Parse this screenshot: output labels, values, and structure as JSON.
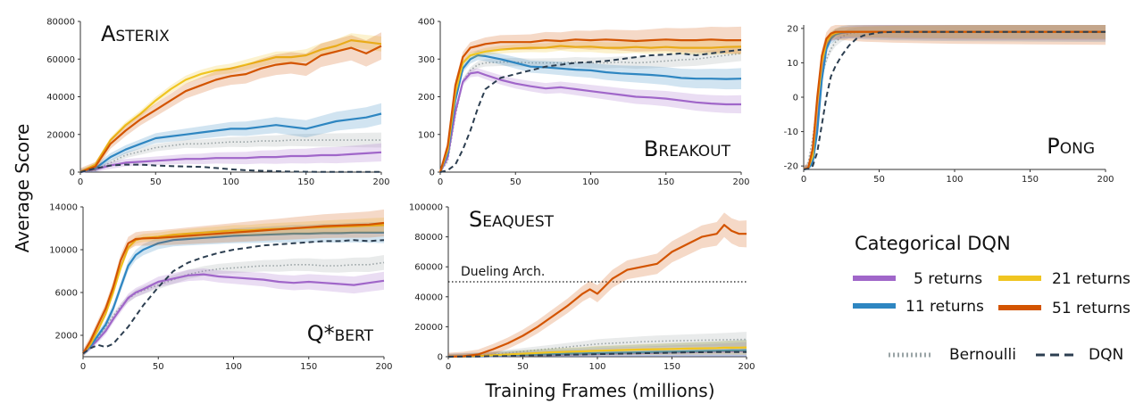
{
  "figure": {
    "ylabel": "Average Score",
    "xlabel": "Training Frames (millions)"
  },
  "legend": {
    "title": "Categorical DQN",
    "items": [
      {
        "label": "5 returns",
        "color": "#a066c9",
        "style": "solid"
      },
      {
        "label": "21 returns",
        "color": "#f0c520",
        "style": "solid"
      },
      {
        "label": "11 returns",
        "color": "#2e86c1",
        "style": "solid"
      },
      {
        "label": "51 returns",
        "color": "#d35400",
        "style": "solid"
      },
      {
        "label": "Bernoulli",
        "color": "#9aa4a6",
        "style": "dotted"
      },
      {
        "label": "DQN",
        "color": "#2c3e50",
        "style": "dashed"
      }
    ]
  },
  "chart_data": [
    {
      "type": "line",
      "title_first": "A",
      "title_rest": "STERIX",
      "title_pos": "top-left",
      "xlim": [
        0,
        200
      ],
      "ylim": [
        0,
        80000
      ],
      "xticks": [
        0,
        50,
        100,
        150,
        200
      ],
      "yticks": [
        0,
        20000,
        40000,
        60000,
        80000
      ],
      "x": [
        0,
        10,
        20,
        30,
        40,
        50,
        60,
        70,
        80,
        90,
        100,
        110,
        120,
        130,
        140,
        150,
        160,
        170,
        180,
        190,
        200
      ],
      "series": [
        {
          "key": "c51",
          "color": "#d35400",
          "values": [
            0,
            3000,
            15000,
            22000,
            28000,
            33000,
            38000,
            43000,
            46000,
            49000,
            51000,
            52000,
            55000,
            57000,
            58000,
            57000,
            62000,
            64000,
            66000,
            63000,
            67000
          ]
        },
        {
          "key": "c21",
          "color": "#f0c520",
          "values": [
            0,
            4000,
            17000,
            25000,
            31000,
            38000,
            44000,
            49000,
            52000,
            54000,
            55000,
            57000,
            59000,
            61000,
            61000,
            62000,
            65000,
            67000,
            70000,
            69000,
            68000
          ]
        },
        {
          "key": "c11",
          "color": "#2e86c1",
          "values": [
            0,
            2000,
            8000,
            12000,
            15000,
            18000,
            19000,
            20000,
            21000,
            22000,
            23000,
            23000,
            24000,
            25000,
            24000,
            23000,
            25000,
            27000,
            28000,
            29000,
            31000
          ]
        },
        {
          "key": "c5",
          "color": "#a066c9",
          "values": [
            0,
            1500,
            3500,
            5000,
            5500,
            6000,
            6500,
            7000,
            7000,
            7500,
            7500,
            7500,
            8000,
            8000,
            8500,
            8500,
            9000,
            9000,
            9500,
            10000,
            10500
          ]
        },
        {
          "key": "bern",
          "color": "#9aa4a6",
          "values": [
            0,
            1000,
            5000,
            9000,
            11000,
            13000,
            14000,
            15000,
            15000,
            15500,
            16000,
            16000,
            16500,
            16500,
            17000,
            17000,
            17000,
            17000,
            17000,
            17000,
            17000
          ]
        },
        {
          "key": "dqn",
          "color": "#2c3e50",
          "values": [
            0,
            2000,
            3500,
            4000,
            4000,
            3500,
            3200,
            3000,
            2800,
            2200,
            1500,
            1000,
            700,
            500,
            300,
            200,
            100,
            100,
            100,
            100,
            100
          ]
        }
      ]
    },
    {
      "type": "line",
      "title_first": "B",
      "title_rest": "REAKOUT",
      "title_pos": "bottom-right",
      "xlim": [
        0,
        200
      ],
      "ylim": [
        0,
        400
      ],
      "xticks": [
        0,
        50,
        100,
        150,
        200
      ],
      "yticks": [
        0,
        100,
        200,
        300,
        400
      ],
      "x": [
        0,
        5,
        10,
        15,
        20,
        25,
        30,
        40,
        50,
        60,
        70,
        80,
        90,
        100,
        110,
        120,
        130,
        140,
        150,
        160,
        170,
        180,
        190,
        200
      ],
      "series": [
        {
          "key": "c51",
          "color": "#d35400",
          "values": [
            0,
            70,
            230,
            305,
            330,
            335,
            340,
            345,
            345,
            345,
            350,
            348,
            352,
            350,
            352,
            350,
            348,
            350,
            352,
            350,
            350,
            352,
            350,
            350
          ]
        },
        {
          "key": "c21",
          "color": "#f0c520",
          "values": [
            0,
            60,
            210,
            290,
            310,
            315,
            320,
            325,
            328,
            330,
            330,
            335,
            332,
            333,
            330,
            330,
            332,
            330,
            332,
            330,
            330,
            330,
            332,
            333
          ]
        },
        {
          "key": "c11",
          "color": "#2e86c1",
          "values": [
            0,
            50,
            190,
            275,
            300,
            310,
            308,
            300,
            290,
            280,
            278,
            275,
            272,
            270,
            265,
            262,
            260,
            258,
            255,
            250,
            248,
            248,
            247,
            248
          ]
        },
        {
          "key": "c5",
          "color": "#a066c9",
          "values": [
            0,
            40,
            160,
            240,
            262,
            265,
            258,
            245,
            235,
            228,
            222,
            225,
            220,
            215,
            210,
            205,
            200,
            198,
            195,
            190,
            185,
            182,
            180,
            180
          ]
        },
        {
          "key": "bern",
          "color": "#9aa4a6",
          "values": [
            0,
            30,
            150,
            240,
            270,
            285,
            290,
            292,
            292,
            290,
            290,
            290,
            292,
            290,
            290,
            292,
            290,
            292,
            295,
            298,
            300,
            305,
            310,
            315
          ]
        },
        {
          "key": "dqn",
          "color": "#2c3e50",
          "values": [
            0,
            5,
            20,
            60,
            110,
            170,
            220,
            250,
            260,
            270,
            280,
            285,
            290,
            292,
            295,
            300,
            305,
            310,
            312,
            315,
            310,
            315,
            320,
            325
          ]
        }
      ]
    },
    {
      "type": "line",
      "title_first": "P",
      "title_rest": "ONG",
      "title_pos": "bottom-right",
      "xlim": [
        0,
        200
      ],
      "ylim": [
        -21,
        21
      ],
      "xticks": [
        0,
        50,
        100,
        150,
        200
      ],
      "yticks": [
        -20,
        -10,
        0,
        10,
        20
      ],
      "x": [
        0,
        3,
        6,
        9,
        12,
        15,
        18,
        21,
        25,
        30,
        35,
        40,
        50,
        60,
        80,
        100,
        150,
        200
      ],
      "series": [
        {
          "key": "c51",
          "color": "#d35400",
          "values": [
            -21,
            -20.5,
            -15,
            0,
            12,
            17,
            18.5,
            19,
            19,
            19,
            19,
            19,
            19,
            19,
            19,
            19,
            19,
            19
          ]
        },
        {
          "key": "c21",
          "color": "#f0c520",
          "values": [
            -21,
            -20.5,
            -17,
            -2,
            10,
            16,
            18,
            18.7,
            19,
            19,
            19,
            19,
            19,
            19,
            19,
            19,
            19,
            19
          ]
        },
        {
          "key": "c11",
          "color": "#2e86c1",
          "values": [
            -21,
            -20.7,
            -19,
            -10,
            5,
            14,
            17,
            18.2,
            18.8,
            19,
            19,
            19,
            19,
            19,
            19,
            19,
            19,
            19
          ]
        },
        {
          "key": "c5",
          "color": "#a066c9",
          "values": [
            -21,
            -20.5,
            -18,
            -6,
            8,
            15,
            17.5,
            18.3,
            18.7,
            18.9,
            19,
            19,
            19,
            19,
            19,
            19,
            19,
            19
          ]
        },
        {
          "key": "bern",
          "color": "#9aa4a6",
          "values": [
            -21,
            -19,
            -12,
            -2,
            6,
            11,
            14,
            16,
            17.5,
            18.5,
            18.8,
            19,
            19,
            19,
            19,
            19,
            19,
            19
          ]
        },
        {
          "key": "dqn",
          "color": "#2c3e50",
          "values": [
            -21,
            -20.8,
            -20,
            -16,
            -8,
            0,
            6,
            9,
            12,
            15,
            17,
            18,
            18.8,
            19,
            19,
            19,
            19,
            19
          ]
        }
      ]
    },
    {
      "type": "line",
      "title_first": "Q*",
      "title_rest": "BERT",
      "title_pos": "bottom-right",
      "xlim": [
        0,
        200
      ],
      "ylim": [
        0,
        14000
      ],
      "xticks": [
        0,
        50,
        100,
        150,
        200
      ],
      "yticks": [
        2000,
        6000,
        10000,
        14000
      ],
      "x": [
        0,
        5,
        10,
        15,
        20,
        25,
        30,
        35,
        40,
        50,
        60,
        70,
        80,
        90,
        100,
        110,
        120,
        130,
        140,
        150,
        160,
        170,
        180,
        190,
        200
      ],
      "series": [
        {
          "key": "c51",
          "color": "#d35400",
          "values": [
            300,
            1500,
            3000,
            4500,
            6500,
            9000,
            10600,
            11000,
            11050,
            11100,
            11200,
            11300,
            11400,
            11500,
            11600,
            11700,
            11800,
            11900,
            12000,
            12100,
            12200,
            12250,
            12300,
            12350,
            12500
          ]
        },
        {
          "key": "c21",
          "color": "#f0c520",
          "values": [
            300,
            1200,
            2500,
            4000,
            6000,
            8300,
            10200,
            10900,
            11100,
            11200,
            11400,
            11500,
            11600,
            11700,
            11800,
            11800,
            11900,
            11950,
            12000,
            12050,
            12100,
            12150,
            12200,
            12250,
            12300
          ]
        },
        {
          "key": "c11",
          "color": "#2e86c1",
          "values": [
            300,
            1000,
            2000,
            3000,
            4500,
            6500,
            8500,
            9500,
            10000,
            10600,
            10900,
            11000,
            11100,
            11200,
            11300,
            11350,
            11400,
            11450,
            11500,
            11500,
            11550,
            11550,
            11600,
            11600,
            11600
          ]
        },
        {
          "key": "c5",
          "color": "#a066c9",
          "values": [
            300,
            900,
            1600,
            2400,
            3500,
            4500,
            5500,
            6000,
            6300,
            7000,
            7300,
            7600,
            7700,
            7500,
            7400,
            7300,
            7200,
            7000,
            6900,
            7000,
            6900,
            6800,
            6700,
            6900,
            7100
          ]
        },
        {
          "key": "bern",
          "color": "#9aa4a6",
          "values": [
            300,
            900,
            1800,
            2800,
            3800,
            4700,
            5400,
            5900,
            6200,
            6700,
            7200,
            7700,
            8000,
            8200,
            8300,
            8400,
            8500,
            8500,
            8600,
            8600,
            8500,
            8500,
            8600,
            8600,
            8800
          ]
        },
        {
          "key": "dqn",
          "color": "#2c3e50",
          "values": [
            300,
            800,
            1100,
            900,
            1200,
            2000,
            2800,
            3800,
            4800,
            6500,
            8000,
            8800,
            9300,
            9700,
            10000,
            10200,
            10400,
            10500,
            10600,
            10700,
            10800,
            10800,
            10900,
            10800,
            10900
          ]
        }
      ]
    },
    {
      "type": "line",
      "title_first": "S",
      "title_rest": "EAQUEST",
      "title_pos": "top-left",
      "xlim": [
        0,
        200
      ],
      "ylim": [
        0,
        100000
      ],
      "xticks": [
        0,
        50,
        100,
        150,
        200
      ],
      "yticks": [
        0,
        20000,
        40000,
        60000,
        80000,
        100000
      ],
      "annotation": {
        "label": "Dueling Arch.",
        "y": 50000
      },
      "x": [
        0,
        10,
        20,
        30,
        40,
        50,
        60,
        70,
        80,
        90,
        95,
        100,
        110,
        120,
        130,
        140,
        150,
        160,
        170,
        180,
        185,
        190,
        195,
        200
      ],
      "series": [
        {
          "key": "c51",
          "color": "#d35400",
          "values": [
            0,
            300,
            1500,
            5000,
            9000,
            14000,
            20000,
            27000,
            34000,
            42000,
            45000,
            42000,
            52000,
            58000,
            60000,
            62000,
            70000,
            75000,
            80000,
            82000,
            88000,
            84000,
            82000,
            82000
          ]
        },
        {
          "key": "c21",
          "color": "#f0c520",
          "values": [
            0,
            200,
            500,
            1000,
            1500,
            2000,
            2500,
            3000,
            3300,
            3600,
            3800,
            4000,
            4200,
            4500,
            4800,
            5000,
            5200,
            5400,
            5600,
            5800,
            6000,
            6000,
            6100,
            6200
          ]
        },
        {
          "key": "c11",
          "color": "#2e86c1",
          "values": [
            0,
            100,
            300,
            600,
            900,
            1200,
            1500,
            1800,
            2000,
            2200,
            2300,
            2400,
            2600,
            2800,
            3000,
            3200,
            3400,
            3600,
            3800,
            4000,
            4100,
            4200,
            4300,
            4400
          ]
        },
        {
          "key": "c5",
          "color": "#a066c9",
          "values": [
            0,
            100,
            200,
            400,
            600,
            800,
            1000,
            1200,
            1400,
            1600,
            1700,
            1800,
            2000,
            2200,
            2400,
            2600,
            2800,
            3000,
            3200,
            3400,
            3500,
            3600,
            3700,
            3800
          ]
        },
        {
          "key": "bern",
          "color": "#9aa4a6",
          "values": [
            0,
            300,
            800,
            1500,
            2500,
            3500,
            4500,
            5500,
            6500,
            7500,
            8000,
            8500,
            9000,
            9500,
            10000,
            10300,
            10600,
            10800,
            11000,
            11200,
            11300,
            11400,
            11500,
            11600
          ]
        },
        {
          "key": "dqn",
          "color": "#2c3e50",
          "values": [
            0,
            100,
            200,
            300,
            500,
            700,
            900,
            1100,
            1300,
            1500,
            1600,
            1700,
            1900,
            2100,
            2300,
            2500,
            2700,
            2900,
            3000,
            3100,
            3100,
            3100,
            3100,
            3100
          ]
        }
      ]
    }
  ]
}
